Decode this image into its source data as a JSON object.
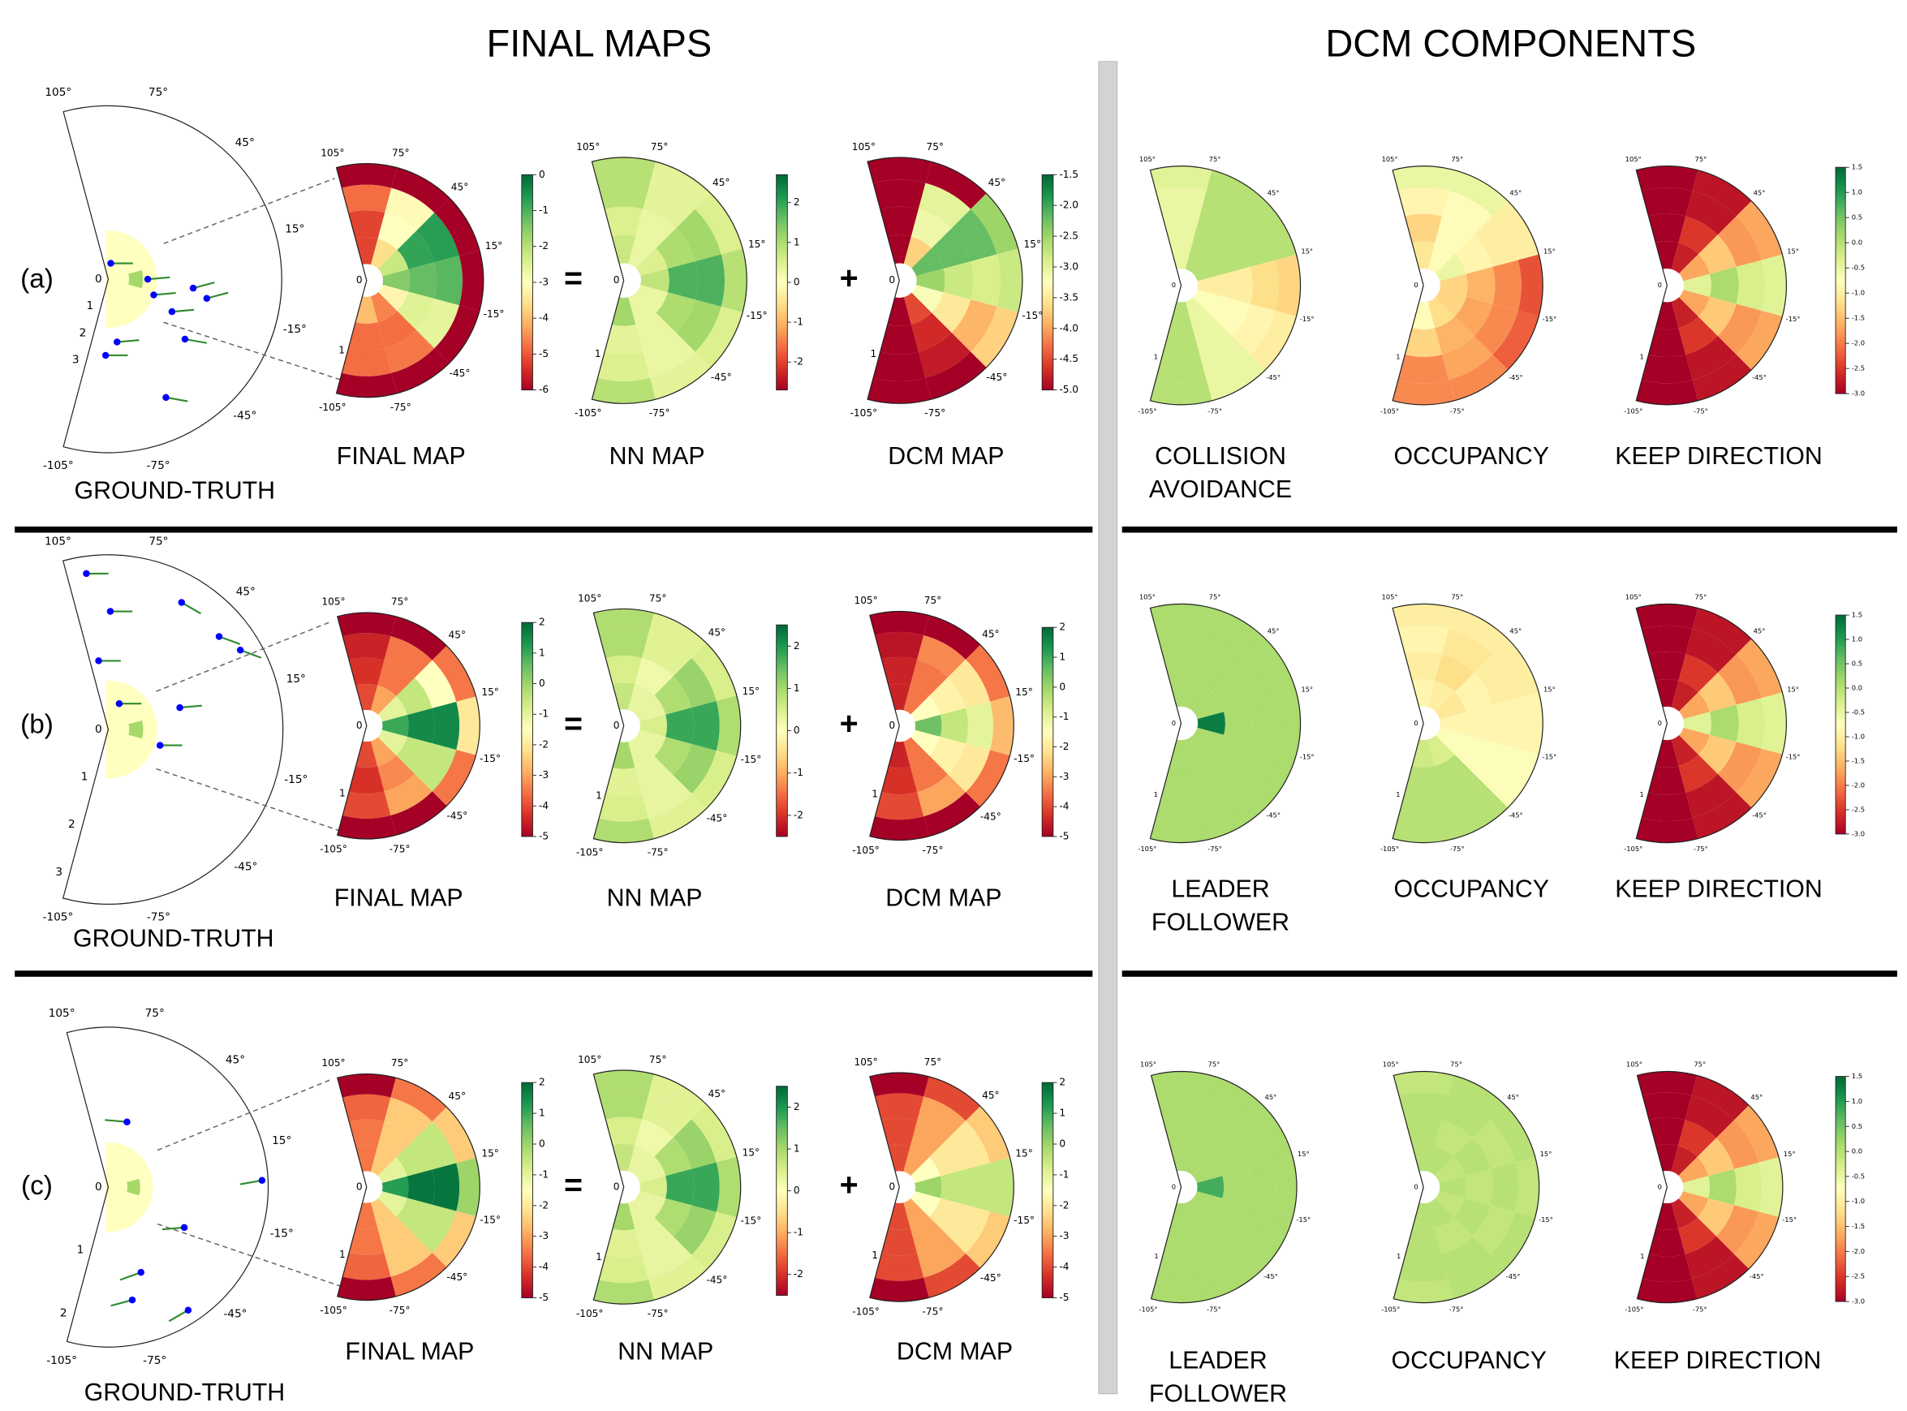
{
  "headers": {
    "final_maps": "FINAL MAPS",
    "dcm_components": "DCM COMPONENTS"
  },
  "operators": {
    "equals": "=",
    "plus": "+"
  },
  "angle_ticks": [
    "105°",
    "75°",
    "45°",
    "15°",
    "-15°",
    "-45°",
    "-75°",
    "-105°"
  ],
  "map_radial_ticks": [
    "0",
    "1"
  ],
  "colors": {
    "separator_bar": "#d3d3d3",
    "agent_dot": "#0000ff",
    "agent_heading": "#2e8b2e",
    "gt_region": "#ffffc0",
    "gt_wedge": "#a6d96a",
    "colormap": "RdYlGn"
  },
  "rows": [
    {
      "label": "(a)",
      "gt": {
        "label": "GROUND-TRUTH",
        "radial_ticks": [
          "0",
          "1",
          "2",
          "3"
        ],
        "agents": [
          [
            0.58,
            81,
            0
          ],
          [
            1.42,
            0,
            5
          ],
          [
            1.73,
            -19,
            5
          ],
          [
            2.57,
            -27,
            5
          ],
          [
            3.07,
            -6,
            15
          ],
          [
            3.61,
            -11,
            15
          ],
          [
            2.28,
            -82,
            5
          ],
          [
            2.74,
            -92,
            0
          ],
          [
            3.5,
            -38,
            -10
          ],
          [
            4.73,
            -64,
            -10
          ]
        ]
      },
      "maps": [
        {
          "label": "FINAL MAP",
          "range": [
            -6,
            0
          ],
          "ticks": [
            "0",
            "-1",
            "-2",
            "-3",
            "-4",
            "-5",
            "-6"
          ],
          "cells": [
            [
              -5.2,
              -3.6,
              -2.2,
              -1.5,
              -3.2,
              -4.6,
              -4
            ],
            [
              -5.2,
              -3,
              -0.8,
              -1.2,
              -2.5,
              -4.8,
              -4.8
            ],
            [
              -4.8,
              -3.1,
              -0.7,
              -1.1,
              -2.6,
              -4.7,
              -4.8
            ],
            [
              -6,
              -6,
              -6,
              -6,
              -6,
              -6,
              -6
            ]
          ]
        },
        {
          "label": "NN MAP",
          "range": [
            -2.7,
            2.7
          ],
          "ticks": [
            "2",
            "1",
            "0",
            "-1",
            "-2"
          ],
          "cells": [
            [
              0.7,
              0.3,
              0.5,
              0.8,
              0.3,
              0.3,
              1.1
            ],
            [
              0.5,
              0.3,
              1.0,
              1.8,
              1.0,
              0.3,
              0.4
            ],
            [
              0.9,
              0.4,
              1.1,
              1.8,
              1.1,
              0.3,
              0.5
            ],
            [
              0.9,
              0.4,
              0.5,
              0.9,
              0.5,
              0.4,
              0.9
            ]
          ]
        },
        {
          "label": "DCM MAP",
          "range": [
            -5,
            -1.5
          ],
          "ticks": [
            "-1.5",
            "-2.0",
            "-2.5",
            "-3.0",
            "-3.5",
            "-4.0",
            "-4.5",
            "-5.0"
          ],
          "cells": [
            [
              -5,
              -3.7,
              -2.2,
              -2.5,
              -3.2,
              -4.5,
              -5
            ],
            [
              -5,
              -3.1,
              -2.2,
              -2.8,
              -3.5,
              -4.7,
              -5
            ],
            [
              -5,
              -3,
              -2.2,
              -2.9,
              -3.9,
              -4.8,
              -5
            ],
            [
              -5,
              -5,
              -2.5,
              -2.8,
              -3.7,
              -5,
              -5
            ]
          ]
        }
      ],
      "components": [
        {
          "label": [
            "COLLISION",
            "AVOIDANCE"
          ],
          "cells": [
            [
              -0.5,
              0,
              0,
              -1,
              -0.7,
              -0.5,
              0
            ],
            [
              -0.5,
              0,
              0,
              -1,
              -0.8,
              -0.5,
              0
            ],
            [
              -0.5,
              0,
              0,
              -1.2,
              -0.9,
              -0.5,
              0
            ],
            [
              -0.4,
              0,
              0,
              -1.3,
              -1,
              -0.5,
              0
            ]
          ]
        },
        {
          "label": [
            "OCCUPANCY"
          ],
          "cells": [
            [
              -1.1,
              -0.8,
              -0.5,
              -1.3,
              -1.3,
              -1.2,
              -0.8
            ],
            [
              -1.3,
              -0.8,
              -0.9,
              -1.6,
              -1.7,
              -1.6,
              -1.3
            ],
            [
              -0.9,
              -0.8,
              -1,
              -1.9,
              -1.9,
              -1.7,
              -1.9
            ],
            [
              -0.5,
              -0.5,
              -1,
              -2.3,
              -2.2,
              -1.9,
              -1.9
            ]
          ]
        },
        {
          "label": [
            "KEEP DIRECTION"
          ],
          "cells": [
            [
              -3,
              -2.7,
              -1.7,
              -0.4,
              -1.7,
              -2.7,
              -3
            ],
            [
              -3,
              -2.5,
              -1.4,
              0.1,
              -1.4,
              -2.5,
              -3
            ],
            [
              -3,
              -2.8,
              -1.8,
              -0.3,
              -1.8,
              -2.8,
              -3
            ],
            [
              -3,
              -2.8,
              -1.7,
              -0.4,
              -1.7,
              -2.8,
              -3
            ]
          ]
        }
      ],
      "component_range": [
        -3,
        1.5
      ],
      "component_ticks": [
        "1.5",
        "1.0",
        "0.5",
        "0.0",
        "-0.5",
        "-1.0",
        "-1.5",
        "-2.0",
        "-2.5",
        "-3.0"
      ]
    },
    {
      "label": "(b)",
      "gt": {
        "label": "GROUND-TRUTH",
        "radial_ticks": [
          "0",
          "1",
          "2",
          "3"
        ],
        "agents": [
          [
            3.2,
            98,
            0
          ],
          [
            2.4,
            89,
            0
          ],
          [
            2.98,
            60,
            -30
          ],
          [
            2.94,
            40,
            -20
          ],
          [
            3.13,
            31,
            -20
          ],
          [
            1.41,
            98,
            0
          ],
          [
            0.57,
            67,
            0
          ],
          [
            1.52,
            17,
            5
          ],
          [
            1.1,
            -17,
            0
          ]
        ]
      },
      "maps": [
        {
          "label": "FINAL MAP",
          "range": [
            -5,
            2
          ],
          "ticks": [
            "2",
            "1",
            "0",
            "-1",
            "-2",
            "-3",
            "-4",
            "-5"
          ],
          "cells": [
            [
              -4,
              -3,
              -1,
              1,
              -1,
              -3,
              -4
            ],
            [
              -4.3,
              -3.5,
              -0.5,
              1.5,
              -0.5,
              -3.3,
              -4.3
            ],
            [
              -4.5,
              -3.5,
              -1.5,
              1.5,
              -0.5,
              -3,
              -4
            ],
            [
              -5,
              -5,
              -3.5,
              -2,
              -3.5,
              -5,
              -5
            ]
          ]
        },
        {
          "label": "NN MAP",
          "range": [
            -2.5,
            2.5
          ],
          "ticks": [
            "2",
            "1",
            "0",
            "-1",
            "-2"
          ],
          "cells": [
            [
              0.7,
              0.3,
              0.3,
              0.5,
              0.3,
              0.3,
              1
            ],
            [
              0.5,
              0.2,
              0.9,
              1.8,
              0.9,
              0.3,
              0.4
            ],
            [
              0.9,
              0.4,
              1.1,
              1.8,
              1.1,
              0.3,
              0.5
            ],
            [
              0.9,
              0.4,
              0.5,
              0.9,
              0.5,
              0.4,
              0.9
            ]
          ]
        },
        {
          "label": "DCM MAP",
          "range": [
            -5,
            2
          ],
          "ticks": [
            "2",
            "1",
            "0",
            "-1",
            "-2",
            "-3",
            "-4",
            "-5"
          ],
          "cells": [
            [
              -4.5,
              -3.5,
              -1.5,
              0.5,
              -1.5,
              -3.5,
              -4.5
            ],
            [
              -4.5,
              -3.5,
              -1.8,
              -0.5,
              -1.8,
              -3.5,
              -4.3
            ],
            [
              -4.7,
              -3.3,
              -2,
              -1,
              -2,
              -3,
              -4
            ],
            [
              -5,
              -5,
              -3.5,
              -2.7,
              -3.5,
              -5,
              -5
            ]
          ]
        }
      ],
      "components": [
        {
          "label": [
            "LEADER",
            "FOLLOWER"
          ],
          "cells": [
            [
              0.1,
              0.1,
              0.1,
              1.3,
              0.1,
              0.1,
              0.1
            ],
            [
              0.1,
              0.1,
              0.1,
              0.1,
              0.1,
              0.1,
              0.1
            ],
            [
              0.1,
              0.1,
              0.1,
              0.1,
              0.1,
              0.1,
              0.1
            ],
            [
              0.1,
              0.1,
              0.1,
              0.1,
              0.1,
              0.1,
              0.1
            ]
          ]
        },
        {
          "label": [
            "OCCUPANCY"
          ],
          "cells": [
            [
              -0.9,
              -1,
              -1.1,
              -0.9,
              -0.7,
              -0.3,
              -0.2
            ],
            [
              -1,
              -1.2,
              -0.9,
              -0.9,
              -0.7,
              0,
              0
            ],
            [
              -0.9,
              -1.1,
              -1,
              -0.9,
              -0.7,
              0,
              0
            ],
            [
              -1,
              -1,
              -1,
              -0.9,
              -0.7,
              0,
              0
            ]
          ]
        },
        {
          "label": [
            "KEEP DIRECTION"
          ],
          "cells": [
            [
              -3,
              -2.7,
              -1.7,
              -0.4,
              -1.7,
              -2.7,
              -3
            ],
            [
              -3,
              -2.5,
              -1.4,
              0.1,
              -1.4,
              -2.5,
              -3
            ],
            [
              -3,
              -2.8,
              -1.8,
              -0.3,
              -1.8,
              -2.8,
              -3
            ],
            [
              -3,
              -2.8,
              -1.7,
              -0.4,
              -1.7,
              -2.8,
              -3
            ]
          ]
        }
      ],
      "component_range": [
        -3,
        1.5
      ],
      "component_ticks": [
        "1.5",
        "1.0",
        "0.5",
        "0.0",
        "-0.5",
        "-1.0",
        "-1.5",
        "-2.0",
        "-2.5",
        "-3.0"
      ]
    },
    {
      "label": "(c)",
      "gt": {
        "label": "GROUND-TRUTH",
        "radial_ticks": [
          "0",
          "1",
          "2"
        ],
        "agents": [
          [
            1.04,
            74,
            175
          ],
          [
            2.36,
            2.5,
            190
          ],
          [
            1.32,
            -28,
            185
          ],
          [
            1.4,
            -69,
            200
          ],
          [
            1.77,
            -78,
            195
          ],
          [
            2.25,
            -57,
            210
          ]
        ]
      },
      "maps": [
        {
          "label": "FINAL MAP",
          "range": [
            -5,
            2
          ],
          "ticks": [
            "2",
            "1",
            "0",
            "-1",
            "-2",
            "-3",
            "-4",
            "-5"
          ],
          "cells": [
            [
              -3.5,
              -2.5,
              -1,
              1.2,
              -1,
              -2.5,
              -3.5
            ],
            [
              -3.5,
              -2.5,
              -0.5,
              1.8,
              -0.5,
              -2.5,
              -3.5
            ],
            [
              -3.7,
              -2.5,
              -0.5,
              1.8,
              -0.5,
              -2.5,
              -3.7
            ],
            [
              -5,
              -3.5,
              -2.5,
              0,
              -2.5,
              -3.5,
              -5
            ]
          ]
        },
        {
          "label": "NN MAP",
          "range": [
            -2.5,
            2.5
          ],
          "ticks": [
            "2",
            "1",
            "0",
            "-1",
            "-2"
          ],
          "cells": [
            [
              0.7,
              0.3,
              0.3,
              0.5,
              0.3,
              0.3,
              1
            ],
            [
              0.5,
              0.2,
              0.9,
              1.8,
              0.9,
              0.3,
              0.4
            ],
            [
              0.9,
              0.4,
              1.1,
              1.8,
              1.1,
              0.3,
              0.5
            ],
            [
              0.9,
              0.4,
              0.5,
              0.9,
              0.5,
              0.4,
              0.9
            ]
          ]
        },
        {
          "label": "DCM MAP",
          "range": [
            -5,
            2
          ],
          "ticks": [
            "2",
            "1",
            "0",
            "-1",
            "-2",
            "-3",
            "-4",
            "-5"
          ],
          "cells": [
            [
              -4,
              -3,
              -1.5,
              0,
              -1.5,
              -3,
              -4
            ],
            [
              -4,
              -3,
              -2,
              -0.5,
              -2,
              -3,
              -4
            ],
            [
              -4,
              -3,
              -2,
              -0.5,
              -2,
              -3,
              -4
            ],
            [
              -5,
              -4,
              -2.5,
              -0.5,
              -2.5,
              -4,
              -5
            ]
          ]
        }
      ],
      "components": [
        {
          "label": [
            "LEADER",
            "FOLLOWER"
          ],
          "cells": [
            [
              0.1,
              0.1,
              0.1,
              0.8,
              0.1,
              0.1,
              0.1
            ],
            [
              0.1,
              0.1,
              0.1,
              0.1,
              0.1,
              0.1,
              0.1
            ],
            [
              0.1,
              0.1,
              0.1,
              0.1,
              0.1,
              0.1,
              0.1
            ],
            [
              0.1,
              0.1,
              0.1,
              0.1,
              0.1,
              0.1,
              0.1
            ]
          ]
        },
        {
          "label": [
            "OCCUPANCY"
          ],
          "cells": [
            [
              0,
              0,
              -0.1,
              0,
              -0.1,
              0,
              0
            ],
            [
              0,
              -0.1,
              0,
              -0.1,
              0,
              -0.1,
              0
            ],
            [
              0,
              0,
              -0.1,
              0,
              -0.1,
              0,
              0
            ],
            [
              -0.1,
              0,
              0,
              -0.1,
              0,
              0,
              -0.1
            ]
          ]
        },
        {
          "label": [
            "KEEP DIRECTION"
          ],
          "cells": [
            [
              -3,
              -2.7,
              -1.7,
              -0.4,
              -1.7,
              -2.7,
              -3
            ],
            [
              -3,
              -2.5,
              -1.4,
              0.1,
              -1.4,
              -2.5,
              -3
            ],
            [
              -3,
              -2.8,
              -1.8,
              -0.3,
              -1.8,
              -2.8,
              -3
            ],
            [
              -3,
              -2.8,
              -1.7,
              -0.4,
              -1.7,
              -2.8,
              -3
            ]
          ]
        }
      ],
      "component_range": [
        -3,
        1.5
      ],
      "component_ticks": [
        "1.5",
        "1.0",
        "0.5",
        "0.0",
        "-0.5",
        "-1.0",
        "-1.5",
        "-2.0",
        "-2.5",
        "-3.0"
      ]
    }
  ]
}
